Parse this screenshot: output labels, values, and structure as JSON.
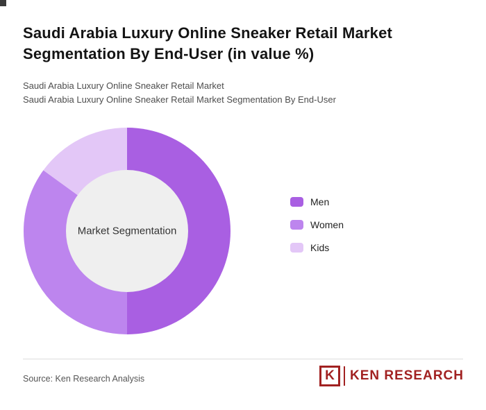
{
  "page": {
    "title": "Saudi Arabia Luxury Online Sneaker Retail Market Segmentation By End-User (in value %)",
    "subtitle_line1": "Saudi Arabia Luxury Online Sneaker Retail Market",
    "subtitle_line2": "Saudi Arabia Luxury Online Sneaker Retail Market Segmentation By End-User"
  },
  "chart_data": {
    "type": "pie",
    "donut": true,
    "title": "Saudi Arabia Luxury Online Sneaker Retail Market Segmentation By End-User (in value %)",
    "center_label": "Market Segmentation",
    "categories": [
      "Men",
      "Women",
      "Kids"
    ],
    "values": [
      50,
      35,
      15
    ],
    "colors": [
      "#a95fe2",
      "#bd85ee",
      "#e3c7f7"
    ],
    "inner_circle_color": "#efefef",
    "start_angle_deg": 0,
    "direction": "clockwise",
    "legend_position": "right"
  },
  "footer": {
    "source": "Source: Ken Research Analysis",
    "logo_k": "K",
    "logo_text": "KEN RESEARCH",
    "logo_color": "#a12121"
  }
}
